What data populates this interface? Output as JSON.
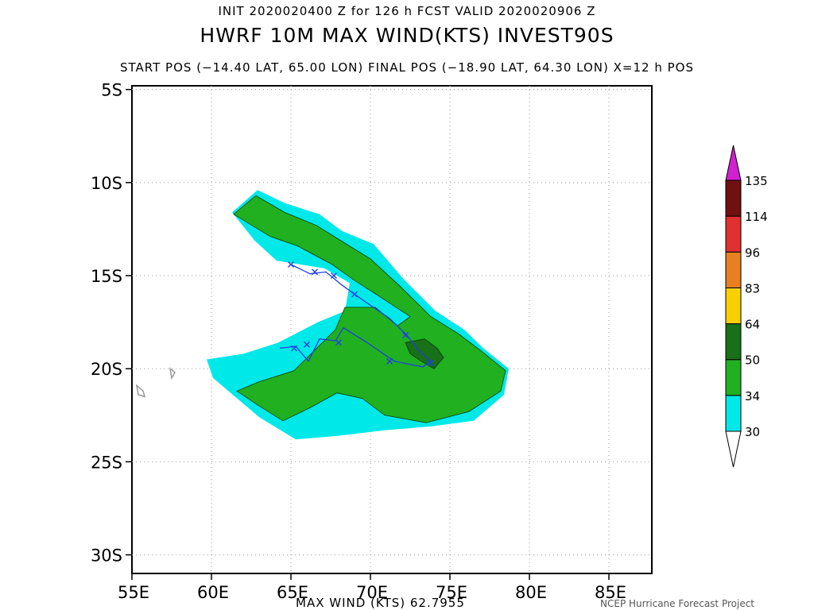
{
  "header": {
    "init_line": "INIT 2020020400 Z for 126 h FCST VALID 2020020906 Z",
    "title": "HWRF 10M MAX WIND(KTS) INVEST90S",
    "pos_line": "START POS (−14.40 LAT, 65.00 LON)    FINAL POS (−18.90 LAT, 64.30 LON) X=12 h POS"
  },
  "footer": {
    "max_wind": "MAX WIND (KTS) 62.7955",
    "credit": "NCEP Hurricane Forecast Project"
  },
  "chart_data": {
    "type": "contour-map",
    "title": "HWRF 10M MAX WIND(KTS) INVEST90S",
    "x_axis": {
      "range": [
        55,
        87.7
      ],
      "ticks": [
        55,
        60,
        65,
        70,
        75,
        80,
        85
      ],
      "labels": [
        "55E",
        "60E",
        "65E",
        "70E",
        "75E",
        "80E",
        "85E"
      ]
    },
    "y_axis": {
      "range": [
        -31,
        -4.8
      ],
      "ticks": [
        -5,
        -10,
        -15,
        -20,
        -25,
        -30
      ],
      "labels": [
        "5S",
        "10S",
        "15S",
        "20S",
        "25S",
        "30S"
      ]
    },
    "grid": true,
    "legend": {
      "placement": "right",
      "levels": [
        30,
        34,
        50,
        64,
        83,
        96,
        114,
        135
      ],
      "labels": [
        "30",
        "34",
        "50",
        "64",
        "83",
        "96",
        "114",
        "135"
      ],
      "colors": [
        "#00e8e8",
        "#20b020",
        "#187018",
        "#f8d000",
        "#e88020",
        "#e03030",
        "#701010",
        "#d020d0"
      ]
    },
    "track": {
      "color": "#2040e0",
      "points": [
        [
          65.0,
          -14.4
        ],
        [
          66.2,
          -14.9
        ],
        [
          67.2,
          -14.8
        ],
        [
          68.2,
          -15.5
        ],
        [
          69.5,
          -16.3
        ],
        [
          71.2,
          -17.3
        ],
        [
          72.3,
          -18.2
        ],
        [
          73.0,
          -19.0
        ],
        [
          73.8,
          -19.6
        ],
        [
          73.3,
          -19.9
        ],
        [
          71.5,
          -19.6
        ],
        [
          69.8,
          -18.6
        ],
        [
          68.3,
          -17.8
        ],
        [
          67.8,
          -18.5
        ],
        [
          66.8,
          -18.4
        ],
        [
          66.1,
          -19.6
        ],
        [
          65.3,
          -18.8
        ],
        [
          64.3,
          -18.9
        ]
      ],
      "marks": [
        [
          65.0,
          -14.4
        ],
        [
          66.5,
          -14.8
        ],
        [
          67.7,
          -15.0
        ],
        [
          69.0,
          -16.0
        ],
        [
          72.2,
          -18.2
        ],
        [
          73.8,
          -19.7
        ],
        [
          71.2,
          -19.6
        ],
        [
          68.0,
          -18.6
        ],
        [
          66.0,
          -18.7
        ],
        [
          65.2,
          -18.9
        ]
      ]
    },
    "wind_regions": {
      "ge30": [
        [
          [
            61.3,
            -11.6
          ],
          [
            62.9,
            -10.4
          ],
          [
            64.6,
            -11.1
          ],
          [
            66.8,
            -11.7
          ],
          [
            68.2,
            -12.6
          ],
          [
            70.2,
            -13.3
          ],
          [
            72.1,
            -15.2
          ],
          [
            74.1,
            -16.9
          ],
          [
            75.9,
            -17.9
          ],
          [
            77.1,
            -18.9
          ],
          [
            78.7,
            -20.0
          ],
          [
            78.4,
            -21.4
          ],
          [
            76.5,
            -22.8
          ],
          [
            73.8,
            -23.1
          ],
          [
            71.0,
            -23.3
          ],
          [
            68.0,
            -23.6
          ],
          [
            65.3,
            -23.8
          ],
          [
            63.0,
            -22.6
          ],
          [
            60.1,
            -20.5
          ],
          [
            59.7,
            -19.5
          ],
          [
            62.0,
            -19.2
          ],
          [
            64.2,
            -18.6
          ],
          [
            66.7,
            -17.5
          ],
          [
            68.4,
            -16.9
          ],
          [
            68.7,
            -15.4
          ],
          [
            67.1,
            -14.6
          ],
          [
            64.1,
            -14.2
          ],
          [
            62.7,
            -13.1
          ]
        ]
      ],
      "ge34": [
        [
          [
            61.4,
            -11.7
          ],
          [
            62.8,
            -10.7
          ],
          [
            64.6,
            -11.6
          ],
          [
            66.6,
            -12.3
          ],
          [
            68.1,
            -13.1
          ],
          [
            70.0,
            -14.1
          ],
          [
            71.9,
            -15.6
          ],
          [
            73.8,
            -17.2
          ],
          [
            75.5,
            -18.1
          ],
          [
            76.9,
            -19.0
          ],
          [
            78.5,
            -20.1
          ],
          [
            78.2,
            -21.2
          ],
          [
            76.2,
            -22.3
          ],
          [
            73.5,
            -22.9
          ],
          [
            70.9,
            -22.5
          ],
          [
            69.5,
            -21.6
          ],
          [
            67.9,
            -21.3
          ],
          [
            66.2,
            -22.1
          ],
          [
            64.5,
            -22.8
          ],
          [
            63.0,
            -22.0
          ],
          [
            61.6,
            -21.2
          ],
          [
            63.0,
            -20.7
          ],
          [
            65.2,
            -20.1
          ],
          [
            67.8,
            -17.9
          ],
          [
            68.4,
            -16.7
          ],
          [
            70.3,
            -16.7
          ],
          [
            71.7,
            -17.7
          ],
          [
            72.5,
            -17.2
          ],
          [
            70.9,
            -16.3
          ],
          [
            68.9,
            -15.2
          ],
          [
            67.6,
            -14.4
          ],
          [
            65.4,
            -13.4
          ],
          [
            63.7,
            -12.9
          ]
        ]
      ],
      "ge50": [
        [
          [
            72.2,
            -18.6
          ],
          [
            73.4,
            -18.4
          ],
          [
            74.2,
            -18.9
          ],
          [
            74.6,
            -19.4
          ],
          [
            74.0,
            -20.0
          ],
          [
            73.2,
            -19.6
          ],
          [
            72.5,
            -19.2
          ]
        ]
      ]
    }
  }
}
